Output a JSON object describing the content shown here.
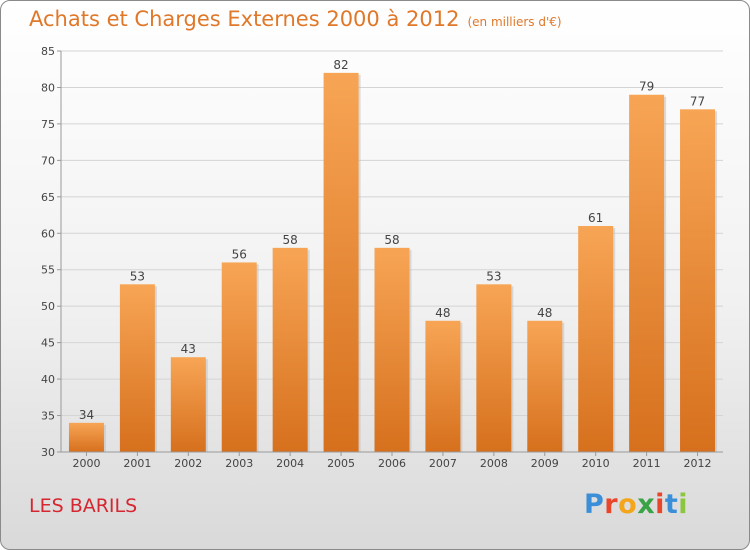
{
  "title": "Achats et Charges Externes 2000 à 2012",
  "unit_label": "(en milliers d'€)",
  "commune": "LES BARILS",
  "logo": {
    "text": "Proxiti",
    "letters": [
      "P",
      "r",
      "o",
      "x",
      "i",
      "t",
      "i"
    ],
    "colors": [
      "#3a8fd8",
      "#e8452b",
      "#f3a61b",
      "#3aa346",
      "#e8452b",
      "#3a8fd8",
      "#8cc63f"
    ]
  },
  "colors": {
    "title": "#e0782a",
    "commune": "#d6262f",
    "bar_top": "#f7a555",
    "bar_bottom": "#d6701d",
    "grid": "#d4d4d4",
    "axis": "#999999"
  },
  "chart_data": {
    "type": "bar",
    "categories": [
      "2000",
      "2001",
      "2002",
      "2003",
      "2004",
      "2005",
      "2006",
      "2007",
      "2008",
      "2009",
      "2010",
      "2011",
      "2012"
    ],
    "values": [
      34,
      53,
      43,
      56,
      58,
      82,
      58,
      48,
      53,
      48,
      61,
      79,
      77
    ],
    "yticks": [
      30,
      35,
      40,
      45,
      50,
      55,
      60,
      65,
      70,
      75,
      80,
      85
    ],
    "ylim": [
      30,
      85
    ],
    "grid": true,
    "xlabel": "",
    "ylabel": ""
  }
}
